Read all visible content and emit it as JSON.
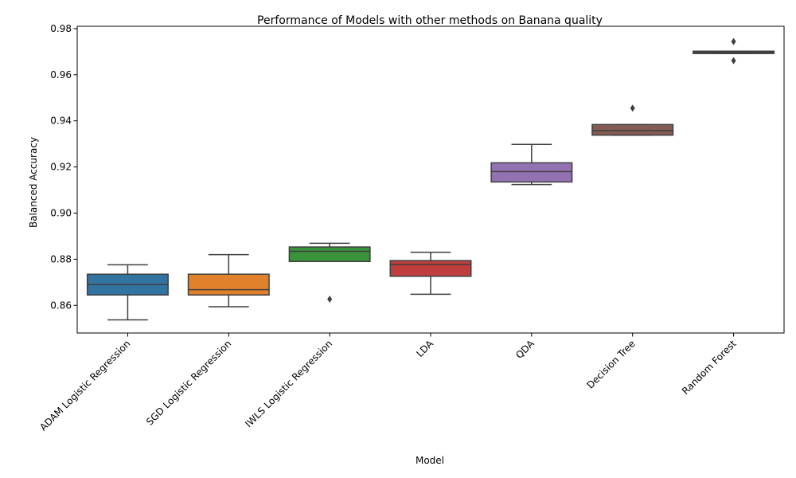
{
  "chart_data": {
    "type": "box",
    "title": "Performance of Models with other methods on Banana quality",
    "xlabel": "Model",
    "ylabel": "Balanced Accuracy",
    "ylim": [
      0.848,
      0.981
    ],
    "yticks": [
      0.86,
      0.88,
      0.9,
      0.92,
      0.94,
      0.96,
      0.98
    ],
    "ytick_labels": [
      "0.86",
      "0.88",
      "0.90",
      "0.92",
      "0.94",
      "0.96",
      "0.98"
    ],
    "grid": false,
    "categories": [
      "ADAM Logistic Regression",
      "SGD Logistic Regression",
      "IWLS Logistic Regression",
      "LDA",
      "QDA",
      "Decision Tree",
      "Random Forest"
    ],
    "boxes": [
      {
        "category": "ADAM Logistic Regression",
        "color": "#3274a1",
        "whisker_low": 0.8537,
        "q1": 0.8645,
        "median": 0.869,
        "q3": 0.8735,
        "whisker_high": 0.8776,
        "outliers": []
      },
      {
        "category": "SGD Logistic Regression",
        "color": "#e1812c",
        "whisker_low": 0.8594,
        "q1": 0.8645,
        "median": 0.8668,
        "q3": 0.8735,
        "whisker_high": 0.882,
        "outliers": []
      },
      {
        "category": "IWLS Logistic Regression",
        "color": "#3a923a",
        "whisker_low": 0.879,
        "q1": 0.879,
        "median": 0.8834,
        "q3": 0.8853,
        "whisker_high": 0.8869,
        "outliers": [
          0.8627
        ]
      },
      {
        "category": "LDA",
        "color": "#c03d3e",
        "whisker_low": 0.8648,
        "q1": 0.8726,
        "median": 0.8777,
        "q3": 0.8794,
        "whisker_high": 0.883,
        "outliers": []
      },
      {
        "category": "QDA",
        "color": "#9372b2",
        "whisker_low": 0.9124,
        "q1": 0.9135,
        "median": 0.918,
        "q3": 0.9218,
        "whisker_high": 0.9298,
        "outliers": []
      },
      {
        "category": "Decision Tree",
        "color": "#845b53",
        "whisker_low": 0.9338,
        "q1": 0.9338,
        "median": 0.9358,
        "q3": 0.9384,
        "whisker_high": 0.9384,
        "outliers": [
          0.9455
        ]
      },
      {
        "category": "Random Forest",
        "color": "#d684bd",
        "whisker_low": 0.9692,
        "q1": 0.9692,
        "median": 0.9697,
        "q3": 0.9702,
        "whisker_high": 0.9702,
        "outliers": [
          0.9744,
          0.9661
        ]
      }
    ]
  }
}
